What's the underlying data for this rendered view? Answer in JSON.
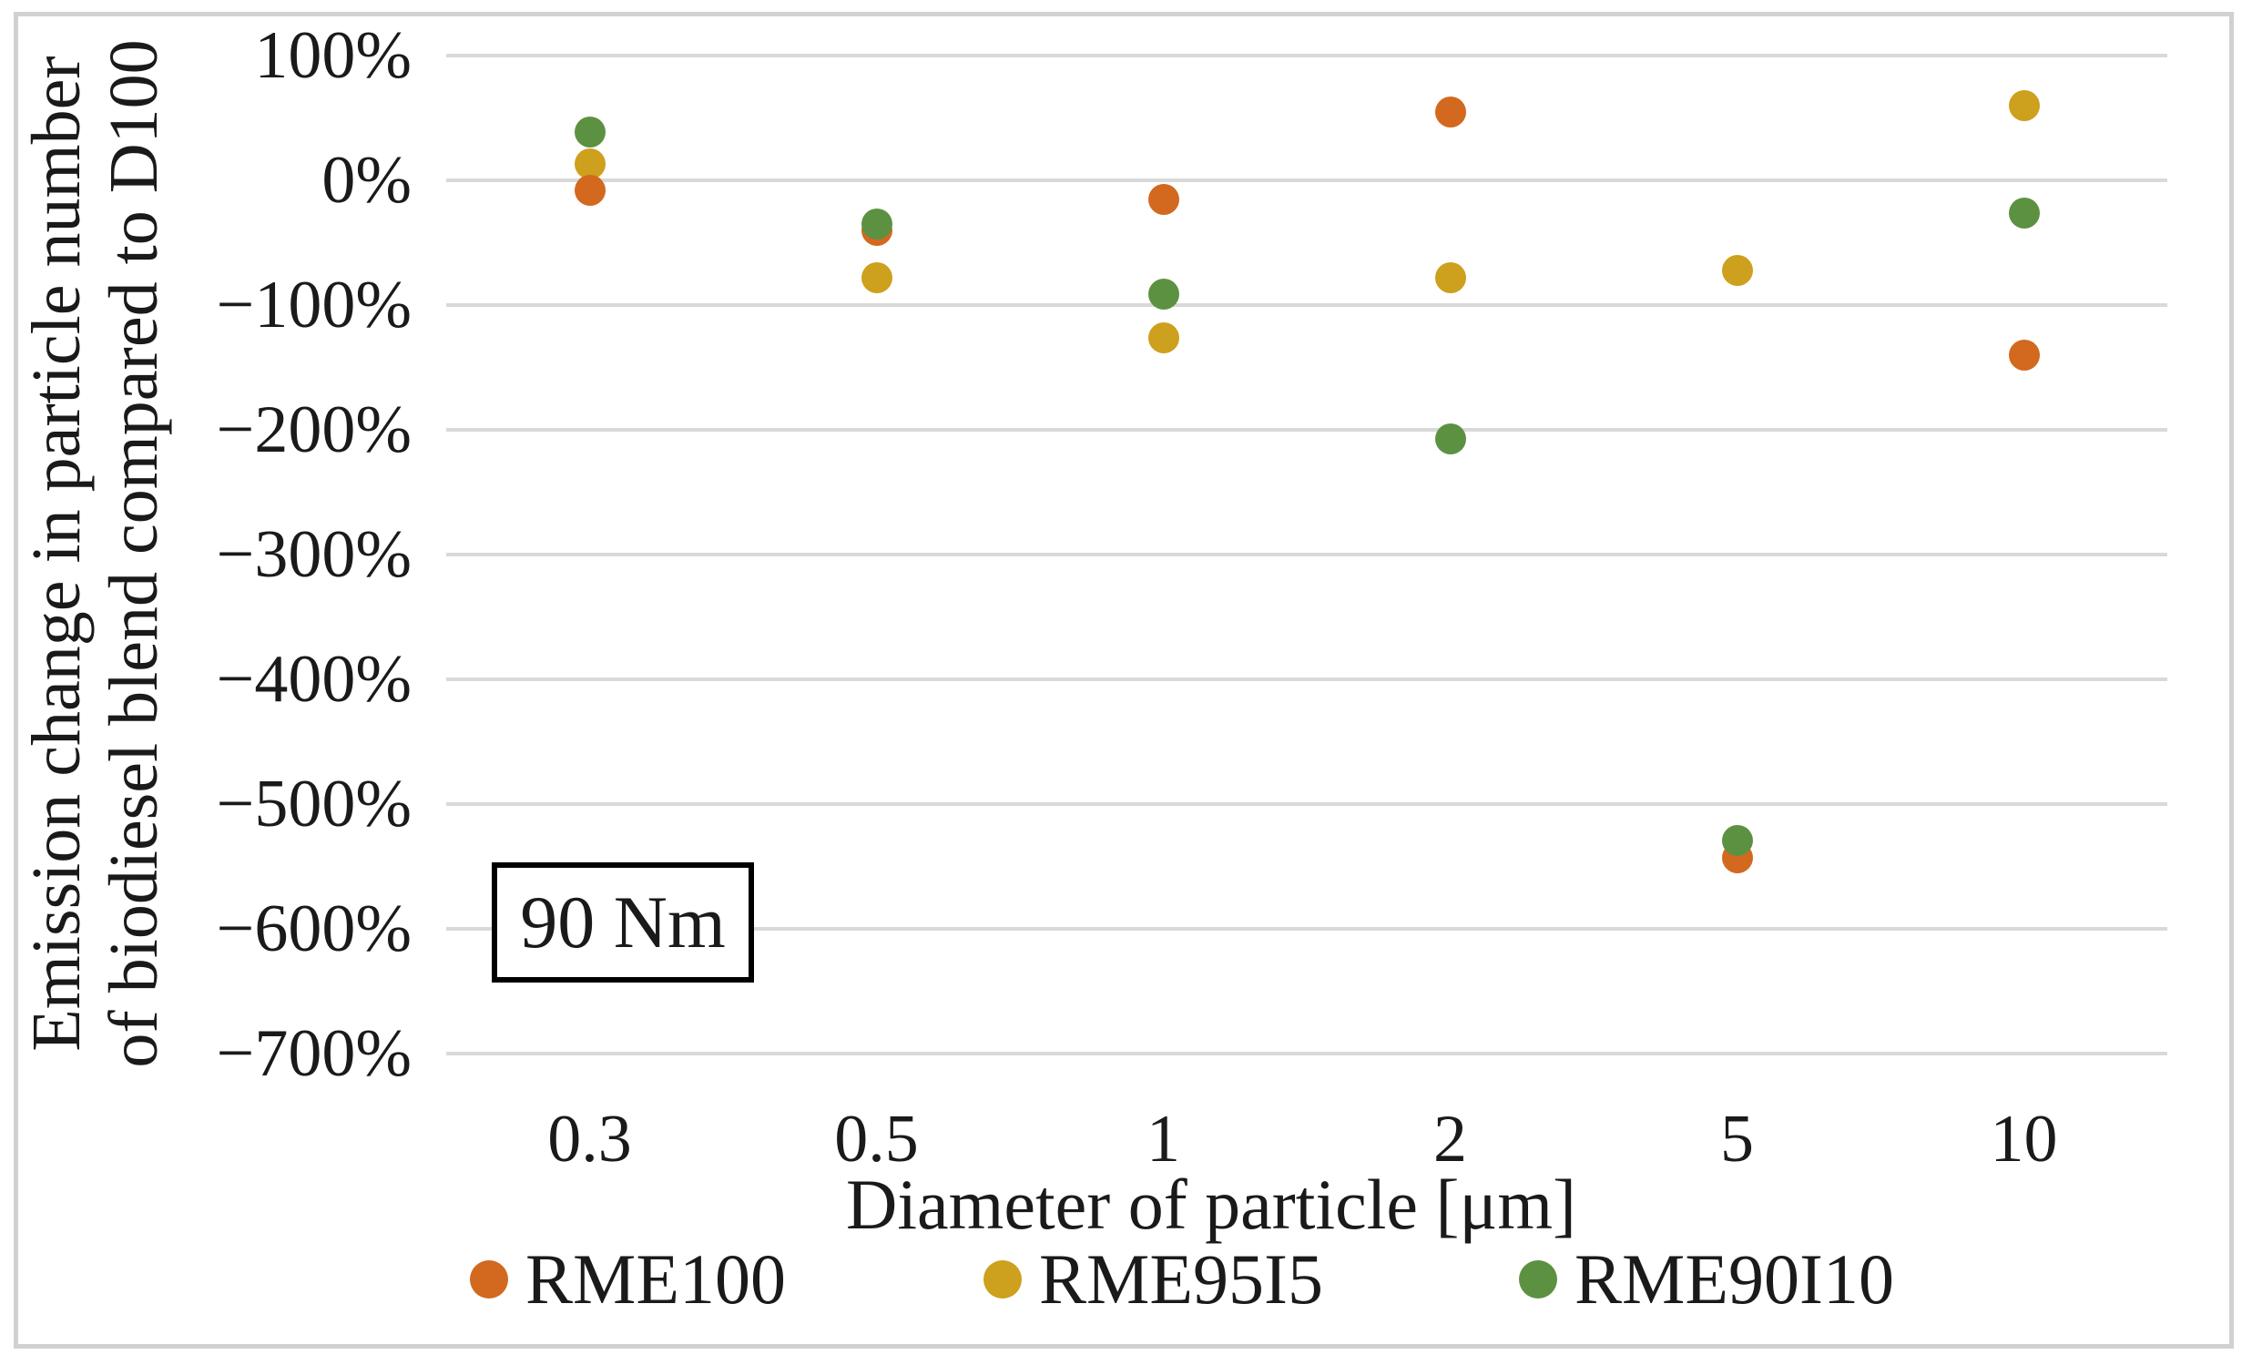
{
  "figure": {
    "background": "#ffffff",
    "frame_color": "#d1d1d1",
    "gridline_color": "#d9d9d9",
    "text_color": "#1a1a1a"
  },
  "chart_data": {
    "type": "scatter",
    "title": "",
    "xlabel": "Diameter of particle [μm]",
    "ylabel_line1": "Emission change in particle number",
    "ylabel_line2": "of biodiesel blend compared to D100",
    "annotation": "90 Nm",
    "x_categories": [
      "0.3",
      "0.5",
      "1",
      "2",
      "5",
      "10"
    ],
    "y_ticks": [
      "100%",
      "0%",
      "−100%",
      "−200%",
      "−300%",
      "−400%",
      "−500%",
      "−600%",
      "−700%"
    ],
    "ylim": [
      -700,
      100
    ],
    "y_step": 100,
    "grid": true,
    "legend_position": "bottom",
    "draw_order": [
      "RME95I5",
      "RME100",
      "RME90I10"
    ],
    "series": [
      {
        "name": "RME100",
        "color": "#d2691e",
        "values_pct": [
          -8,
          -40,
          -15,
          55,
          -543,
          -140
        ]
      },
      {
        "name": "RME95I5",
        "color": "#cda01d",
        "values_pct": [
          13,
          -78,
          -126,
          -78,
          -72,
          60
        ]
      },
      {
        "name": "RME90I10",
        "color": "#5d9142",
        "values_pct": [
          39,
          -35,
          -91,
          -207,
          -529,
          -26
        ]
      }
    ]
  }
}
